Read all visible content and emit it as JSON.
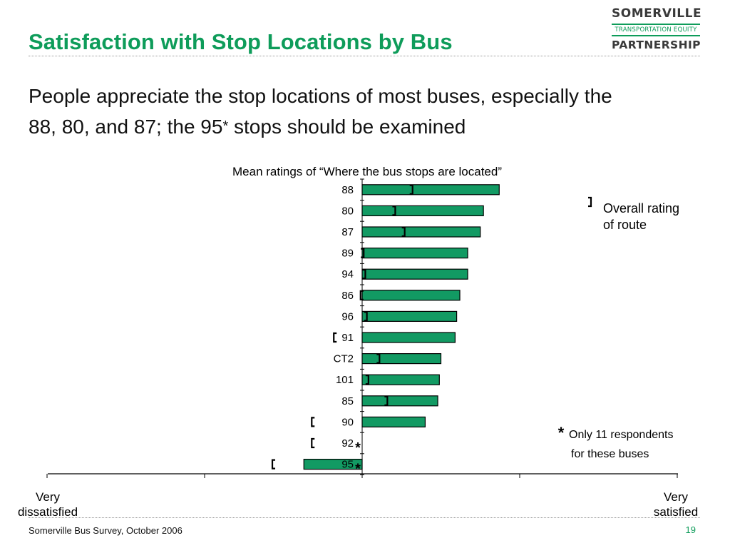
{
  "slide": {
    "title": "Satisfaction with Stop Locations by Bus",
    "headline": "People appreciate the stop locations of most buses, especially the 88, 80, and 87; the 95",
    "headline_asterisk": "*",
    "headline_tail": " stops should be examined",
    "logo": {
      "line1": "SOMERVILLE",
      "line2": "TRANSPORTATION EQUITY",
      "line3": "PARTNERSHIP"
    },
    "footer": "Somerville Bus Survey, October 2006",
    "page_number": "19"
  },
  "colors": {
    "accent": "#0e9c5a",
    "bar_fill": "#129a63",
    "bar_stroke": "#000000"
  },
  "chart_data": {
    "type": "bar",
    "orientation": "horizontal",
    "title": "Mean ratings of “Where the bus stops are located”",
    "categories": [
      "88",
      "80",
      "87",
      "89",
      "94",
      "86",
      "96",
      "91",
      "CT2",
      "101",
      "85",
      "90",
      "92",
      "95"
    ],
    "values": [
      0.87,
      0.77,
      0.75,
      0.67,
      0.67,
      0.62,
      0.6,
      0.59,
      0.5,
      0.49,
      0.48,
      0.4,
      0.0,
      -0.37
    ],
    "overall_route_rating": [
      0.32,
      0.21,
      0.27,
      0.01,
      0.02,
      -0.01,
      0.03,
      -0.18,
      0.11,
      0.04,
      0.16,
      -0.32,
      -0.32,
      -0.57
    ],
    "asterisked": [
      "92",
      "95"
    ],
    "xlim": [
      -2,
      2
    ],
    "x_tick_values": [
      -2,
      -1,
      0,
      1,
      2
    ],
    "x_end_labels": {
      "left": "Very\ndissatisfied",
      "right": "Very\nsatisfied"
    },
    "legend": {
      "position": "right",
      "marker": "]",
      "label": "Overall rating\nof route"
    },
    "note": {
      "marker": "*",
      "text": "Only 11 respondents\nfor these buses"
    },
    "grid": false
  }
}
